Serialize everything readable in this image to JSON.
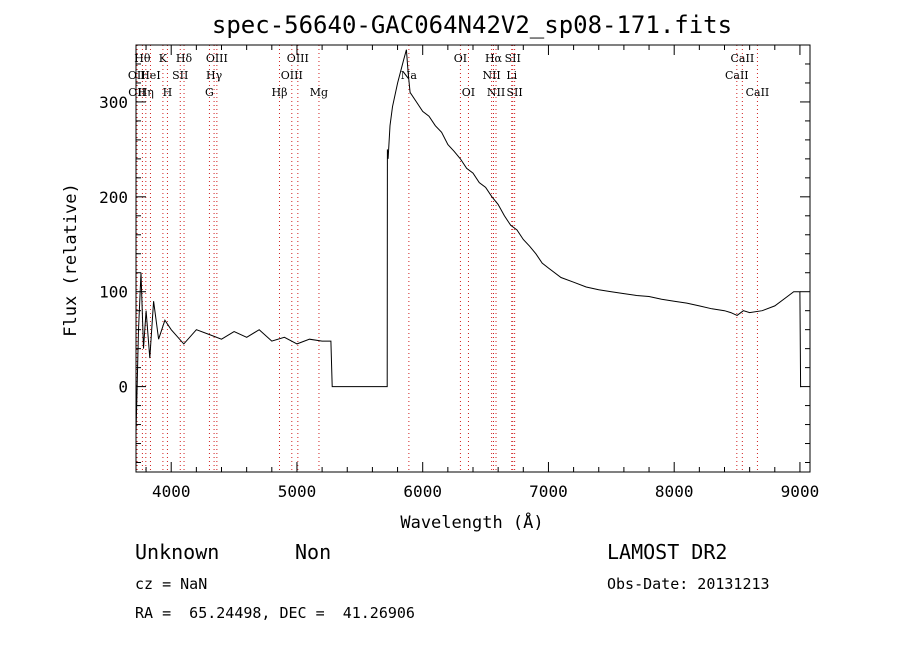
{
  "chart_data": {
    "type": "line",
    "title": "spec-56640-GAC064N42V2_sp08-171.fits",
    "xlabel": "Wavelength (Å)",
    "ylabel": "Flux (relative)",
    "xlim": [
      3720,
      9080
    ],
    "ylim": [
      -90,
      360
    ],
    "xticks": [
      4000,
      5000,
      6000,
      7000,
      8000,
      9000
    ],
    "yticks": [
      0,
      100,
      200,
      300
    ],
    "grid": false,
    "series": [
      {
        "x": [
          3720,
          3740,
          3760,
          3780,
          3800,
          3830,
          3860,
          3900,
          3950,
          4000,
          4100,
          4200,
          4300,
          4400,
          4500,
          4600,
          4700,
          4800,
          4900,
          5000,
          5100,
          5200,
          5270,
          5280,
          5300,
          5700,
          5718,
          5719,
          5725,
          5740,
          5760,
          5800,
          5850,
          5870,
          5885,
          5900,
          5950,
          6000,
          6050,
          6100,
          6150,
          6200,
          6250,
          6300,
          6350,
          6400,
          6450,
          6500,
          6550,
          6600,
          6650,
          6700,
          6750,
          6800,
          6850,
          6900,
          6950,
          7000,
          7100,
          7200,
          7300,
          7400,
          7500,
          7600,
          7700,
          7800,
          7900,
          8000,
          8100,
          8200,
          8300,
          8400,
          8450,
          8500,
          8550,
          8600,
          8700,
          8800,
          8900,
          8950,
          9000,
          9005,
          9010
        ],
        "y": [
          -50,
          60,
          120,
          40,
          80,
          30,
          90,
          50,
          70,
          60,
          45,
          60,
          55,
          50,
          58,
          52,
          60,
          48,
          52,
          45,
          50,
          48,
          48,
          0,
          0,
          0,
          0,
          250,
          240,
          275,
          295,
          320,
          345,
          355,
          330,
          310,
          300,
          290,
          285,
          275,
          268,
          255,
          248,
          240,
          230,
          225,
          215,
          210,
          200,
          192,
          180,
          170,
          165,
          155,
          148,
          140,
          130,
          125,
          115,
          110,
          105,
          102,
          100,
          98,
          96,
          95,
          92,
          90,
          88,
          85,
          82,
          80,
          78,
          75,
          80,
          78,
          80,
          85,
          95,
          100,
          100,
          0,
          0
        ]
      }
    ],
    "line_markers": [
      {
        "wavelength": 3726,
        "label": "OII",
        "row": 2
      },
      {
        "wavelength": 3729,
        "label": "OII",
        "row": 3
      },
      {
        "wavelength": 3771,
        "label": "Hθ",
        "row": 1
      },
      {
        "wavelength": 3798,
        "label": "Hη",
        "row": 3
      },
      {
        "wavelength": 3835,
        "label": "HeI",
        "row": 2
      },
      {
        "wavelength": 3934,
        "label": "K",
        "row": 1
      },
      {
        "wavelength": 3970,
        "label": "H",
        "row": 3
      },
      {
        "wavelength": 4072,
        "label": "SII",
        "row": 2
      },
      {
        "wavelength": 4102,
        "label": "Hδ",
        "row": 1
      },
      {
        "wavelength": 4304,
        "label": "G",
        "row": 3
      },
      {
        "wavelength": 4341,
        "label": "Hγ",
        "row": 2
      },
      {
        "wavelength": 4363,
        "label": "OIII",
        "row": 1
      },
      {
        "wavelength": 4861,
        "label": "Hβ",
        "row": 3
      },
      {
        "wavelength": 4959,
        "label": "OIII",
        "row": 2
      },
      {
        "wavelength": 5007,
        "label": "OIII",
        "row": 1
      },
      {
        "wavelength": 5175,
        "label": "Mg",
        "row": 3
      },
      {
        "wavelength": 5890,
        "label": "Na",
        "row": 2
      },
      {
        "wavelength": 6300,
        "label": "OI",
        "row": 1
      },
      {
        "wavelength": 6364,
        "label": "OI",
        "row": 3
      },
      {
        "wavelength": 6548,
        "label": "NII",
        "row": 2
      },
      {
        "wavelength": 6563,
        "label": "Hα",
        "row": 1
      },
      {
        "wavelength": 6583,
        "label": "NII",
        "row": 3
      },
      {
        "wavelength": 6708,
        "label": "Li",
        "row": 2
      },
      {
        "wavelength": 6716,
        "label": "SII",
        "row": 1
      },
      {
        "wavelength": 6731,
        "label": "SII",
        "row": 3
      },
      {
        "wavelength": 8498,
        "label": "CaII",
        "row": 2
      },
      {
        "wavelength": 8542,
        "label": "CaII",
        "row": 1
      },
      {
        "wavelength": 8662,
        "label": "CaII",
        "row": 3
      }
    ],
    "colors": {
      "spectrum": "#000000",
      "marker": "#d02020",
      "axes": "#000000"
    }
  },
  "info": {
    "class": "Unknown",
    "subclass": "Non",
    "survey": "LAMOST DR2",
    "cz": "cz = NaN",
    "obs_date": "Obs-Date: 20131213",
    "radec": "RA =  65.24498, DEC =  41.26906"
  }
}
